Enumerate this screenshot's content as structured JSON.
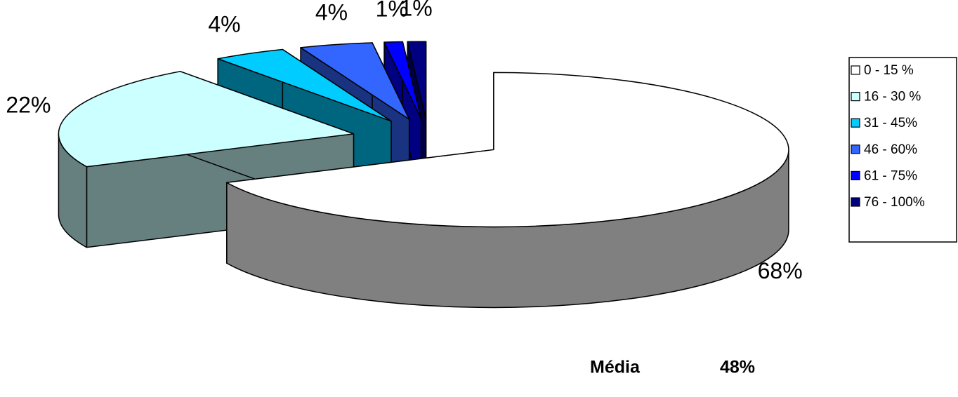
{
  "chart_data": {
    "type": "pie3d",
    "categories": [
      "0 - 15 %",
      "16 - 30 %",
      "31 - 45%",
      "46 - 60%",
      "61 - 75%",
      "76 - 100%"
    ],
    "values": [
      68,
      22,
      4,
      4,
      1,
      1
    ],
    "value_labels": [
      "68%",
      "22%",
      "4%",
      "4%",
      "1%",
      "1%"
    ],
    "colors": [
      "#ffffff",
      "#ccffff",
      "#00ccff",
      "#3366ff",
      "#0000ff",
      "#000080"
    ],
    "legend": "right",
    "annotations": [
      "Média",
      "48%"
    ]
  }
}
